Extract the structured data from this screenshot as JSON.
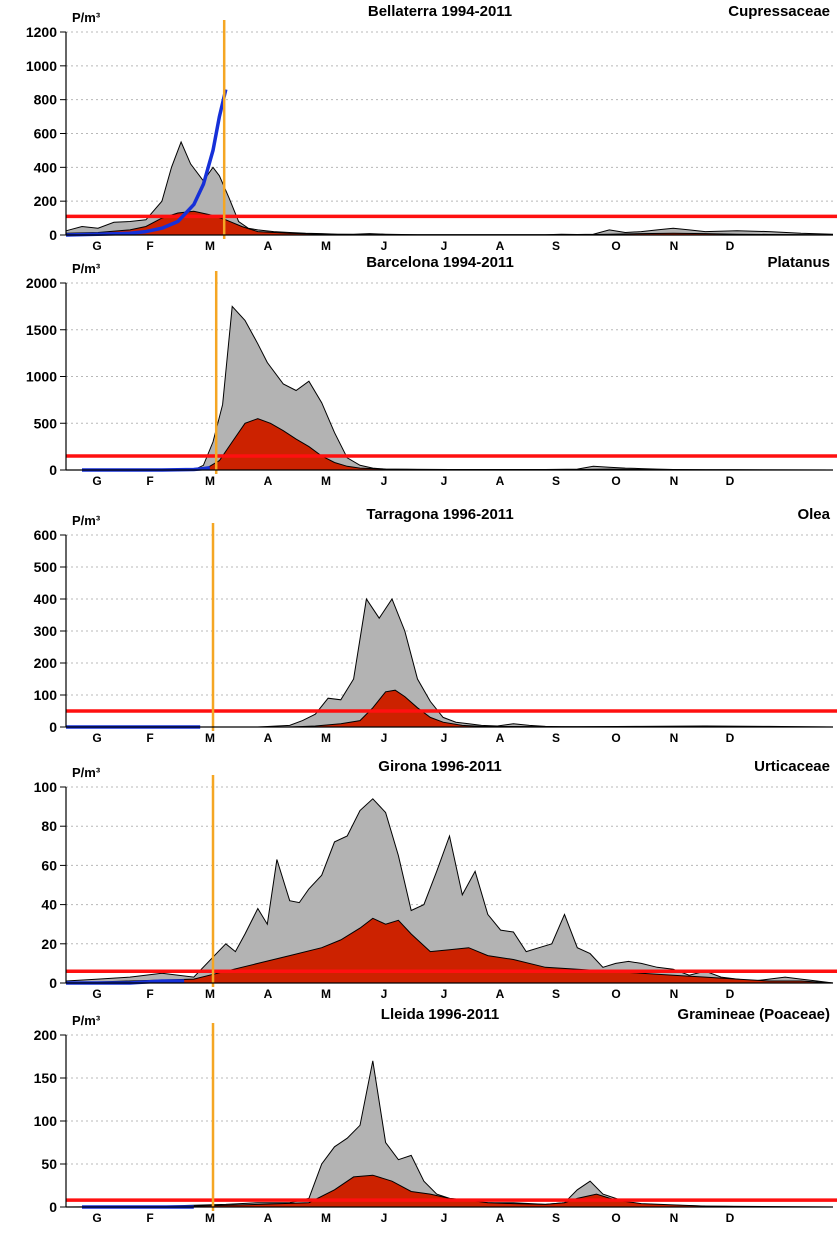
{
  "chart_data": [
    {
      "type": "area",
      "title": "Bellaterra 1994-2011",
      "taxon": "Cupressaceae",
      "ylabel": "P/m³",
      "ylim": [
        0,
        1200
      ],
      "yticks": [
        0,
        200,
        400,
        600,
        800,
        1000,
        1200
      ],
      "months": [
        "G",
        "F",
        "M",
        "A",
        "M",
        "J",
        "J",
        "A",
        "S",
        "O",
        "N",
        "D"
      ],
      "threshold": 110,
      "current_date_month": 4.95,
      "series": [
        {
          "role": "max",
          "x": [
            0,
            0.5,
            1.0,
            1.5,
            2.0,
            2.5,
            3.0,
            3.3,
            3.6,
            3.9,
            4.3,
            4.6,
            4.8,
            5.1,
            5.4,
            5.7,
            6.0,
            6.5,
            7.0,
            7.5,
            8.0,
            8.5,
            9.0,
            9.5,
            10.0,
            10.5,
            11.0,
            11.5,
            12.0,
            13.0,
            14.0,
            14.5,
            15.0,
            15.5,
            16.0,
            16.5,
            17.0,
            17.5,
            18.0,
            18.5,
            19.0,
            19.5,
            20.0,
            21.0,
            22.0,
            23.0,
            24.0
          ],
          "values": [
            25,
            50,
            40,
            75,
            80,
            90,
            200,
            400,
            550,
            420,
            320,
            400,
            350,
            220,
            80,
            40,
            30,
            20,
            15,
            10,
            8,
            5,
            5,
            8,
            5,
            3,
            2,
            2,
            2,
            2,
            2,
            1,
            1,
            5,
            3,
            5,
            30,
            15,
            20,
            30,
            40,
            30,
            20,
            25,
            20,
            10,
            5
          ]
        },
        {
          "role": "mean",
          "x": [
            0,
            1.0,
            2.0,
            2.5,
            3.0,
            3.5,
            4.0,
            4.5,
            5.0,
            5.5,
            6.0,
            7.0,
            8.0,
            9.0,
            10.0,
            12.0,
            14.0,
            16.0,
            17.0,
            18.0,
            19.0,
            20.0,
            21.0,
            22.0,
            24.0
          ],
          "values": [
            10,
            15,
            30,
            50,
            100,
            130,
            140,
            120,
            90,
            50,
            20,
            10,
            5,
            3,
            2,
            1,
            1,
            2,
            5,
            8,
            10,
            8,
            5,
            3,
            2
          ]
        },
        {
          "role": "current",
          "x": [
            0,
            1.0,
            2.0,
            2.5,
            3.0,
            3.5,
            4.0,
            4.3,
            4.6,
            4.8,
            5.0
          ],
          "values": [
            0,
            5,
            10,
            20,
            40,
            80,
            180,
            300,
            500,
            700,
            860
          ]
        }
      ]
    },
    {
      "type": "area",
      "title": "Barcelona 1994-2011",
      "taxon": "Platanus",
      "ylabel": "P/m³",
      "ylim": [
        0,
        2000
      ],
      "yticks": [
        0,
        500,
        1000,
        1500,
        2000
      ],
      "months": [
        "G",
        "F",
        "M",
        "A",
        "M",
        "J",
        "J",
        "A",
        "S",
        "O",
        "N",
        "D"
      ],
      "threshold": 150,
      "current_date_month": 4.7,
      "series": [
        {
          "role": "max",
          "x": [
            0,
            1,
            2,
            3,
            4.0,
            4.3,
            4.6,
            4.9,
            5.2,
            5.6,
            6.0,
            6.3,
            6.8,
            7.2,
            7.6,
            8.0,
            8.4,
            8.8,
            9.2,
            9.6,
            10.0,
            11,
            12,
            13,
            14,
            15,
            16,
            16.5,
            17,
            17.5,
            18,
            18.5,
            19,
            20,
            21,
            22,
            24
          ],
          "values": [
            0,
            0,
            0,
            0,
            0,
            50,
            300,
            700,
            1750,
            1600,
            1350,
            1150,
            920,
            850,
            950,
            720,
            400,
            130,
            50,
            20,
            10,
            5,
            3,
            3,
            5,
            5,
            10,
            40,
            30,
            20,
            15,
            10,
            5,
            3,
            2,
            1,
            0
          ]
        },
        {
          "role": "mean",
          "x": [
            0,
            4.3,
            4.8,
            5.2,
            5.6,
            6.0,
            6.4,
            6.8,
            7.2,
            7.6,
            8.0,
            8.4,
            8.8,
            9.2,
            10.0,
            12,
            16,
            17,
            18,
            20,
            24
          ],
          "values": [
            0,
            0,
            100,
            300,
            500,
            550,
            500,
            420,
            330,
            250,
            150,
            80,
            40,
            20,
            10,
            5,
            5,
            10,
            5,
            2,
            0
          ]
        },
        {
          "role": "current",
          "x": [
            0.5,
            1,
            2,
            3,
            4.0,
            4.3,
            4.5
          ],
          "values": [
            0,
            0,
            0,
            0,
            5,
            15,
            25
          ]
        }
      ]
    },
    {
      "type": "area",
      "title": "Tarragona 1996-2011",
      "taxon": "Olea",
      "ylabel": "P/m³",
      "ylim": [
        0,
        600
      ],
      "yticks": [
        0,
        100,
        200,
        300,
        400,
        500,
        600
      ],
      "months": [
        "G",
        "F",
        "M",
        "A",
        "M",
        "J",
        "J",
        "A",
        "S",
        "O",
        "N",
        "D"
      ],
      "threshold": 50,
      "current_date_month": 4.6,
      "series": [
        {
          "role": "max",
          "x": [
            0,
            2,
            4,
            6,
            7.0,
            7.4,
            7.8,
            8.2,
            8.6,
            9.0,
            9.4,
            9.8,
            10.2,
            10.6,
            11.0,
            11.4,
            11.8,
            12.2,
            12.6,
            13.0,
            13.5,
            14.0,
            14.5,
            15.0,
            15.5,
            16.0,
            18,
            20,
            22,
            24
          ],
          "values": [
            0,
            0,
            0,
            0,
            5,
            20,
            40,
            90,
            85,
            150,
            400,
            340,
            400,
            300,
            150,
            80,
            30,
            15,
            10,
            5,
            3,
            10,
            5,
            2,
            1,
            1,
            2,
            3,
            2,
            0
          ]
        },
        {
          "role": "mean",
          "x": [
            0,
            7.0,
            7.8,
            8.6,
            9.2,
            9.6,
            10.0,
            10.3,
            10.6,
            11.0,
            11.4,
            11.8,
            12.4,
            13.0,
            16.0,
            24
          ],
          "values": [
            0,
            0,
            3,
            10,
            20,
            60,
            110,
            115,
            95,
            60,
            30,
            15,
            5,
            2,
            1,
            0
          ]
        },
        {
          "role": "current",
          "x": [
            0,
            1,
            2,
            3,
            4.0,
            4.2
          ],
          "values": [
            0,
            0,
            0,
            0,
            0,
            0
          ]
        }
      ]
    },
    {
      "type": "area",
      "title": "Girona 1996-2011",
      "taxon": "Urticaceae",
      "ylabel": "P/m³",
      "ylim": [
        0,
        100
      ],
      "yticks": [
        0,
        20,
        40,
        60,
        80,
        100
      ],
      "months": [
        "G",
        "F",
        "M",
        "A",
        "M",
        "J",
        "J",
        "A",
        "S",
        "O",
        "N",
        "D"
      ],
      "threshold": 6,
      "current_date_month": 4.6,
      "series": [
        {
          "role": "max",
          "x": [
            0,
            1,
            2,
            3,
            4,
            5.0,
            5.3,
            5.6,
            6.0,
            6.3,
            6.6,
            7.0,
            7.3,
            7.6,
            8.0,
            8.4,
            8.8,
            9.2,
            9.6,
            10.0,
            10.4,
            10.8,
            11.2,
            11.6,
            12.0,
            12.4,
            12.8,
            13.2,
            13.6,
            14.0,
            14.4,
            14.8,
            15.2,
            15.6,
            16.0,
            16.4,
            16.8,
            17.2,
            17.6,
            18.0,
            18.5,
            19.0,
            19.5,
            20.0,
            20.5,
            21.0,
            21.5,
            22.0,
            22.5,
            23.0,
            23.5,
            24.0
          ],
          "values": [
            1,
            2,
            3,
            5,
            3,
            20,
            16,
            25,
            38,
            30,
            63,
            42,
            41,
            48,
            55,
            72,
            75,
            88,
            94,
            87,
            65,
            37,
            40,
            57,
            75,
            45,
            57,
            35,
            27,
            26,
            16,
            18,
            20,
            35,
            18,
            15,
            8,
            10,
            11,
            10,
            8,
            7,
            4,
            6,
            3,
            2,
            1,
            2,
            3,
            2,
            1,
            0
          ]
        },
        {
          "role": "mean",
          "x": [
            0,
            2,
            4,
            5.0,
            6.0,
            7.0,
            8.0,
            8.6,
            9.2,
            9.6,
            10.0,
            10.4,
            10.8,
            11.4,
            12.0,
            12.6,
            13.2,
            14.0,
            15.0,
            16.0,
            17.0,
            18.0,
            19.0,
            20.0,
            21.0,
            22.0,
            23.0,
            24.0
          ],
          "values": [
            0,
            1,
            2,
            6,
            10,
            14,
            18,
            22,
            28,
            33,
            30,
            32,
            25,
            16,
            17,
            18,
            14,
            12,
            8,
            7,
            6,
            5,
            4,
            3,
            2,
            1,
            1,
            0
          ]
        },
        {
          "role": "current",
          "x": [
            0,
            1,
            2,
            3,
            3.7
          ],
          "values": [
            0,
            0,
            0,
            1,
            1
          ]
        }
      ]
    },
    {
      "type": "area",
      "title": "Lleida 1996-2011",
      "taxon": "Gramineae (Poaceae)",
      "ylabel": "P/m³",
      "ylim": [
        0,
        200
      ],
      "yticks": [
        0,
        50,
        100,
        150,
        200
      ],
      "months": [
        "G",
        "F",
        "M",
        "A",
        "M",
        "J",
        "J",
        "A",
        "S",
        "O",
        "N",
        "D"
      ],
      "threshold": 8,
      "current_date_month": 4.6,
      "series": [
        {
          "role": "max",
          "x": [
            0,
            2,
            4,
            5.0,
            6.0,
            7.0,
            7.6,
            8.0,
            8.4,
            8.8,
            9.2,
            9.6,
            10.0,
            10.4,
            10.8,
            11.2,
            11.6,
            12.0,
            12.4,
            12.8,
            13.2,
            14.0,
            15.0,
            15.6,
            16.0,
            16.4,
            16.8,
            17.2,
            17.6,
            18.0,
            19.0,
            20.0,
            22.0,
            24.0
          ],
          "values": [
            0,
            0,
            2,
            3,
            5,
            5,
            10,
            50,
            70,
            80,
            95,
            170,
            75,
            55,
            60,
            30,
            15,
            10,
            8,
            5,
            5,
            5,
            3,
            5,
            20,
            30,
            15,
            10,
            5,
            2,
            2,
            1,
            0,
            0
          ]
        },
        {
          "role": "mean",
          "x": [
            0,
            4,
            6.0,
            7.6,
            8.4,
            9.0,
            9.6,
            10.2,
            10.8,
            11.4,
            12.0,
            12.6,
            13.2,
            14.0,
            15.0,
            15.6,
            16.0,
            16.6,
            17.2,
            18.0,
            20.0,
            24.0
          ],
          "values": [
            0,
            1,
            3,
            5,
            20,
            35,
            37,
            30,
            18,
            15,
            10,
            8,
            5,
            4,
            3,
            5,
            10,
            15,
            8,
            4,
            1,
            0
          ]
        },
        {
          "role": "current",
          "x": [
            0.5,
            1,
            2,
            3,
            4.0
          ],
          "values": [
            0,
            0,
            0,
            0,
            0
          ]
        }
      ]
    }
  ]
}
